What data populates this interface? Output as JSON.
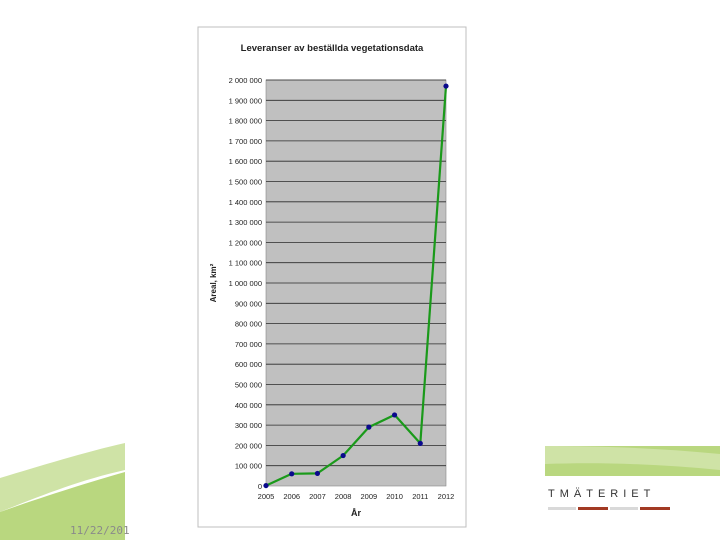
{
  "slide": {
    "date_text": "11/22/201",
    "brand_text": "TMÄTERIET",
    "colors": {
      "green_light": "#cfe3a6",
      "green_mid": "#b9d77f",
      "brand_red": "#a23a23"
    }
  },
  "chart_data": {
    "type": "line",
    "title": "Leveranser av beställda vegetationsdata",
    "xlabel": "År",
    "ylabel": "Areal, km²",
    "x": [
      2005,
      2006,
      2007,
      2008,
      2009,
      2010,
      2011,
      2012
    ],
    "x_tick_labels": [
      "2005",
      "2006",
      "2007",
      "2008",
      "2009",
      "2010",
      "2011",
      "2012"
    ],
    "series": [
      {
        "values": [
          2000,
          60000,
          62000,
          150000,
          290000,
          350000,
          210000,
          1970000
        ],
        "line_color": "#1a9a1a",
        "marker_color": "#0a0a8c"
      }
    ],
    "ylim": [
      0,
      2000000
    ],
    "y_ticks": [
      0,
      100000,
      200000,
      300000,
      400000,
      500000,
      600000,
      700000,
      800000,
      900000,
      1000000,
      1100000,
      1200000,
      1300000,
      1400000,
      1500000,
      1600000,
      1700000,
      1800000,
      1900000,
      2000000
    ],
    "y_tick_labels": [
      "0",
      "100 000",
      "200 000",
      "300 000",
      "400 000",
      "500 000",
      "600 000",
      "700 000",
      "800 000",
      "900 000",
      "1 000 000",
      "1 100 000",
      "1 200 000",
      "1 300 000",
      "1 400 000",
      "1 500 000",
      "1 600 000",
      "1 700 000",
      "1 800 000",
      "1 900 000",
      "2 000 000"
    ],
    "grid": true,
    "plot_background": "#c0c0c0",
    "legend": "none"
  }
}
